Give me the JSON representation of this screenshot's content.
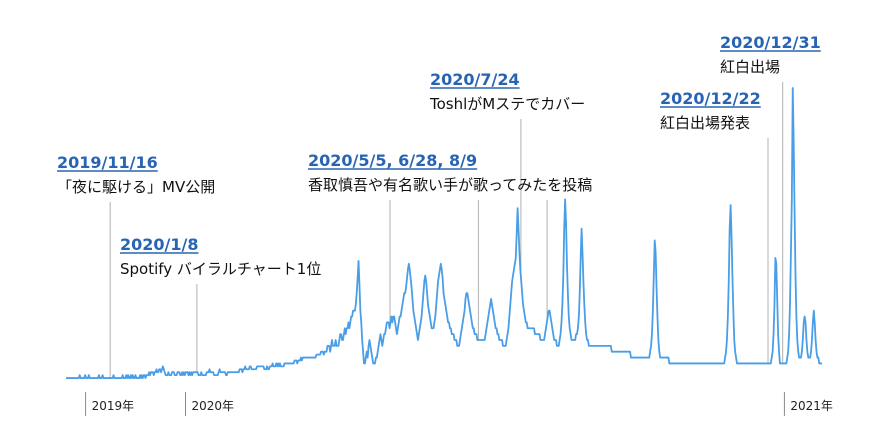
{
  "chart_data": {
    "type": "line",
    "title": "",
    "xlabel": "",
    "ylabel": "",
    "colors": {
      "line": "#4a9ee8",
      "annotation_line": "#b0b0b0",
      "annotation_date": "#2864b4"
    },
    "x_start": "2019-10-20",
    "x_end": "2021-01-24",
    "ylim": [
      0,
      100
    ],
    "series": [
      {
        "values": [
          1,
          1,
          1,
          1,
          1,
          1,
          1,
          1,
          1,
          1,
          1,
          1,
          1,
          1,
          1,
          2,
          1,
          1,
          1,
          1,
          1,
          2,
          1,
          1,
          1,
          2,
          1,
          1,
          1,
          1,
          1,
          1,
          1,
          1,
          1,
          1,
          2,
          1,
          1,
          1,
          2,
          1,
          1,
          1,
          1,
          1,
          1,
          1,
          1,
          1,
          1,
          1,
          2,
          1,
          1,
          1,
          1,
          1,
          1,
          1,
          1,
          1,
          2,
          1,
          1,
          1,
          2,
          1,
          2,
          1,
          1,
          2,
          1,
          2,
          1,
          1,
          2,
          1,
          1,
          1,
          1,
          2,
          1,
          2,
          1,
          2,
          2,
          1,
          2,
          2,
          2,
          3,
          2,
          3,
          3,
          3,
          2,
          3,
          3,
          4,
          3,
          3,
          4,
          4,
          3,
          4,
          5,
          4,
          3,
          2,
          2,
          2,
          3,
          2,
          2,
          2,
          3,
          3,
          3,
          2,
          2,
          2,
          3,
          3,
          3,
          2,
          2,
          3,
          2,
          3,
          2,
          3,
          3,
          3,
          2,
          3,
          2,
          3,
          2,
          3,
          3,
          3,
          3,
          3,
          3,
          2,
          2,
          2,
          3,
          2,
          2,
          2,
          2,
          2,
          3,
          3,
          3,
          4,
          3,
          3,
          3,
          3,
          2,
          2,
          2,
          2,
          2,
          3,
          4,
          3,
          3,
          3,
          3,
          3,
          3,
          2,
          2,
          3,
          3,
          3,
          3,
          3,
          3,
          3,
          3,
          3,
          3,
          3,
          3,
          3,
          4,
          4,
          4,
          3,
          4,
          4,
          5,
          4,
          4,
          4,
          4,
          5,
          5,
          4,
          4,
          4,
          4,
          4,
          4,
          5,
          5,
          5,
          5,
          5,
          5,
          5,
          5,
          4,
          4,
          4,
          5,
          4,
          4,
          5,
          5,
          5,
          6,
          5,
          5,
          5,
          6,
          5,
          6,
          5,
          6,
          5,
          5,
          5,
          5,
          6,
          6,
          6,
          6,
          6,
          6,
          6,
          6,
          6,
          6,
          6,
          7,
          7,
          7,
          6,
          7,
          7,
          7,
          8,
          7,
          8,
          8,
          8,
          8,
          8,
          8,
          8,
          8,
          8,
          8,
          8,
          8,
          8,
          8,
          8,
          9,
          9,
          9,
          9,
          9,
          10,
          10,
          10,
          9,
          10,
          10,
          10,
          12,
          12,
          12,
          10,
          12,
          14,
          12,
          12,
          12,
          14,
          12,
          12,
          12,
          14,
          16,
          16,
          14,
          14,
          16,
          18,
          16,
          18,
          18,
          20,
          18,
          20,
          22,
          22,
          24,
          24,
          24,
          26,
          30,
          35,
          41,
          33,
          24,
          20,
          14,
          10,
          6,
          6,
          8,
          10,
          8,
          12,
          14,
          12,
          10,
          8,
          6,
          6,
          6,
          8,
          8,
          10,
          12,
          14,
          16,
          14,
          12,
          14,
          16,
          16,
          18,
          20,
          20,
          20,
          18,
          20,
          22,
          20,
          22,
          22,
          20,
          18,
          16,
          18,
          20,
          22,
          22,
          24,
          26,
          28,
          30,
          30,
          32,
          35,
          38,
          40,
          38,
          35,
          32,
          28,
          24,
          22,
          20,
          18,
          16,
          14,
          16,
          18,
          20,
          22,
          26,
          30,
          34,
          36,
          34,
          30,
          26,
          24,
          22,
          20,
          18,
          18,
          18,
          20,
          22,
          26,
          30,
          34,
          36,
          38,
          40,
          38,
          35,
          30,
          28,
          26,
          24,
          22,
          20,
          20,
          18,
          18,
          16,
          16,
          16,
          14,
          14,
          14,
          12,
          12,
          12,
          14,
          16,
          18,
          20,
          22,
          24,
          28,
          30,
          30,
          28,
          26,
          24,
          22,
          20,
          18,
          18,
          16,
          16,
          16,
          14,
          14,
          14,
          14,
          14,
          14,
          14,
          14,
          14,
          16,
          18,
          20,
          22,
          24,
          26,
          28,
          26,
          24,
          22,
          20,
          18,
          18,
          16,
          16,
          14,
          14,
          14,
          14,
          12,
          12,
          12,
          12,
          14,
          16,
          18,
          22,
          26,
          30,
          34,
          36,
          38,
          40,
          42,
          50,
          59,
          52,
          44,
          38,
          34,
          30,
          26,
          24,
          22,
          20,
          20,
          18,
          18,
          18,
          18,
          18,
          18,
          18,
          18,
          16,
          16,
          16,
          16,
          16,
          16,
          14,
          14,
          14,
          14,
          14,
          16,
          18,
          20,
          22,
          24,
          24,
          22,
          20,
          18,
          16,
          14,
          14,
          14,
          12,
          12,
          12,
          14,
          16,
          20,
          26,
          36,
          52,
          62,
          54,
          40,
          30,
          22,
          18,
          16,
          14,
          14,
          14,
          14,
          14,
          16,
          16,
          18,
          22,
          30,
          42,
          52,
          44,
          34,
          26,
          20,
          16,
          14,
          14,
          12,
          12,
          12,
          12,
          12,
          12,
          12,
          12,
          12,
          12,
          12,
          12,
          12,
          12,
          12,
          12,
          12,
          12,
          12,
          12,
          12,
          12,
          12,
          12,
          12,
          10,
          10,
          10,
          10,
          10,
          10,
          10,
          10,
          10,
          10,
          10,
          10,
          10,
          10,
          10,
          10,
          10,
          10,
          10,
          10,
          10,
          8,
          8,
          8,
          8,
          8,
          8,
          8,
          8,
          8,
          8,
          8,
          8,
          8,
          8,
          8,
          8,
          8,
          8,
          8,
          8,
          8,
          10,
          12,
          16,
          24,
          36,
          48,
          44,
          32,
          22,
          14,
          10,
          8,
          8,
          8,
          8,
          8,
          8,
          8,
          8,
          8,
          8,
          6,
          6,
          6,
          6,
          6,
          6,
          6,
          6,
          6,
          6,
          6,
          6,
          6,
          6,
          6,
          6,
          6,
          6,
          6,
          6,
          6,
          6,
          6,
          6,
          6,
          6,
          6,
          6,
          6,
          6,
          6,
          6,
          6,
          6,
          6,
          6,
          6,
          6,
          6,
          6,
          6,
          6,
          6,
          6,
          6,
          6,
          6,
          6,
          6,
          6,
          6,
          6,
          6,
          6,
          6,
          6,
          6,
          6,
          6,
          6,
          6,
          8,
          10,
          14,
          22,
          34,
          52,
          60,
          50,
          36,
          24,
          14,
          10,
          8,
          6,
          6,
          6,
          6,
          6,
          6,
          6,
          6,
          6,
          6,
          6,
          6,
          6,
          6,
          6,
          6,
          6,
          6,
          6,
          6,
          6,
          6,
          6,
          6,
          6,
          6,
          6,
          6,
          6,
          6,
          6,
          6,
          6,
          6,
          6,
          6,
          6,
          6,
          8,
          10,
          16,
          26,
          42,
          40,
          28,
          16,
          10,
          6,
          6,
          6,
          6,
          6,
          6,
          6,
          6,
          8,
          10,
          16,
          26,
          44,
          62,
          100,
          82,
          58,
          36,
          22,
          14,
          10,
          8,
          8,
          8,
          10,
          14,
          20,
          22,
          20,
          14,
          10,
          8,
          8,
          8,
          10,
          14,
          20,
          24,
          20,
          14,
          10,
          8,
          8,
          6,
          6,
          6,
          6
        ]
      }
    ],
    "axis": {
      "tick_labels": [
        {
          "label": "2019年",
          "date": "2019-11-01"
        },
        {
          "label": "2020年",
          "date": "2020-01-01"
        },
        {
          "label": "2021年",
          "date": "2021-01-01"
        }
      ]
    },
    "annotations": [
      {
        "date": "2019-11-16",
        "title": "2019/11/16",
        "text": "「夜に駆ける」MV公開",
        "text_row": 4
      },
      {
        "date": "2020-01-08",
        "title": "2020/1/8",
        "text": "Spotify バイラルチャート1位",
        "text_row": 5
      },
      {
        "date": "2020-05-05",
        "title": "2020/5/5, 6/28, 8/9",
        "text": "香取慎吾や有名歌い手が歌ってみたを投稿",
        "text_row": 3,
        "extra_dates": [
          "2020-06-28",
          "2020-08-09"
        ]
      },
      {
        "date": "2020-07-24",
        "title": "2020/7/24",
        "text": "ToshlがMステでカバー",
        "text_row": 1
      },
      {
        "date": "2020-12-22",
        "title": "2020/12/22",
        "text": "紅白出場発表",
        "text_row": 2
      },
      {
        "date": "2020-12-31",
        "title": "2020/12/31",
        "text": "紅白出場",
        "text_row": 0
      }
    ]
  }
}
